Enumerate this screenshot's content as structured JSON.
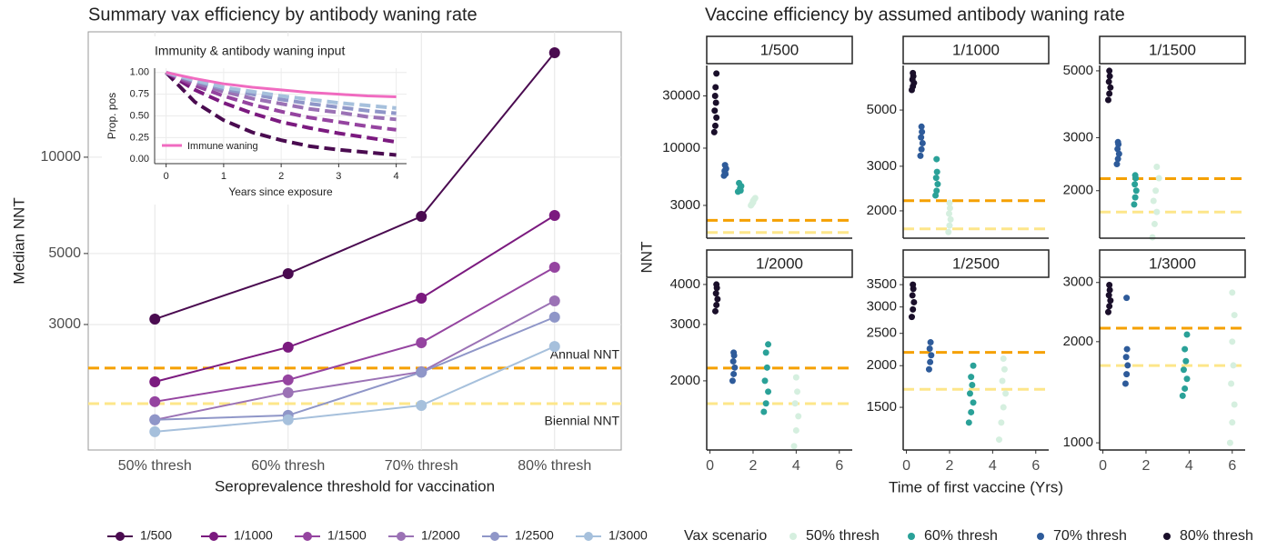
{
  "chart_data": [
    {
      "type": "line",
      "title": "Summary vax efficiency by antibody waning rate",
      "xlabel": "Seroprevalence threshold for vaccination",
      "ylabel": "Median NNT",
      "categories": [
        "50% thresh",
        "60% thresh",
        "70% thresh",
        "80% thresh"
      ],
      "series": [
        {
          "name": "1/500",
          "color": "#4a0b50",
          "values": [
            3119,
            4325,
            6530,
            21200
          ]
        },
        {
          "name": "1/1000",
          "color": "#7b1a7f",
          "values": [
            1986,
            2548,
            3626,
            6577
          ]
        },
        {
          "name": "1/1500",
          "color": "#9544a0",
          "values": [
            1722,
            2014,
            2631,
            4529
          ]
        },
        {
          "name": "1/2000",
          "color": "#9b72b5",
          "values": [
            1511,
            1837,
            2135,
            3556
          ]
        },
        {
          "name": "1/2500",
          "color": "#8f96c8",
          "values": [
            1511,
            1560,
            2128,
            3163
          ]
        },
        {
          "name": "1/3000",
          "color": "#a6c0dc",
          "values": [
            1387,
            1511,
            1676,
            2562
          ]
        }
      ],
      "ylim": [
        1216,
        24650
      ],
      "yticks": [
        3000,
        5000,
        10000
      ],
      "log_y": true,
      "grid": true,
      "legend": "bottom",
      "hlines": [
        {
          "label": "Annual NNT",
          "value": 2193,
          "color": "#f5a000"
        },
        {
          "label": "Biennial NNT",
          "value": 1698,
          "color": "#fde68a"
        }
      ]
    },
    {
      "type": "line",
      "title": "Immunity & antibody waning input",
      "xlabel": "Years since exposure",
      "ylabel": "Prop. pos",
      "x": [
        0,
        0.5,
        1,
        1.5,
        2,
        2.5,
        3,
        3.5,
        4
      ],
      "xlim": [
        -0.2,
        4.18
      ],
      "xticks": [
        0,
        1,
        2,
        3,
        4
      ],
      "ylim": [
        -0.05,
        1.05
      ],
      "yticks": [
        {
          "value": 0,
          "label": "0.00"
        },
        {
          "value": 0.25,
          "label": "0.25"
        },
        {
          "value": 0.5,
          "label": "0.50"
        },
        {
          "value": 0.75,
          "label": "0.75"
        },
        {
          "value": 1,
          "label": "1.00"
        }
      ],
      "series": [
        {
          "name": "Immune waning",
          "color": "#f06bc0",
          "values": [
            1,
            0.93,
            0.87,
            0.83,
            0.8,
            0.77,
            0.75,
            0.73,
            0.72
          ]
        },
        {
          "color": "#4a0b50",
          "dash": true,
          "values": [
            1,
            0.66,
            0.45,
            0.31,
            0.22,
            0.15,
            0.11,
            0.08,
            0.05
          ]
        },
        {
          "color": "#7b1a7f",
          "dash": true,
          "values": [
            1,
            0.8,
            0.65,
            0.53,
            0.43,
            0.36,
            0.3,
            0.25,
            0.2
          ]
        },
        {
          "color": "#9544a0",
          "dash": true,
          "values": [
            1,
            0.85,
            0.73,
            0.63,
            0.55,
            0.48,
            0.43,
            0.38,
            0.34
          ]
        },
        {
          "color": "#9b72b5",
          "dash": true,
          "values": [
            1,
            0.88,
            0.78,
            0.7,
            0.64,
            0.58,
            0.54,
            0.49,
            0.46
          ]
        },
        {
          "color": "#8f96c8",
          "dash": true,
          "values": [
            1,
            0.9,
            0.81,
            0.75,
            0.69,
            0.64,
            0.6,
            0.56,
            0.53
          ]
        },
        {
          "color": "#a6c0dc",
          "dash": true,
          "values": [
            1,
            0.91,
            0.83,
            0.78,
            0.73,
            0.69,
            0.65,
            0.62,
            0.59
          ]
        }
      ]
    },
    {
      "type": "facet_scatter",
      "title": "Vaccine efficiency by assumed antibody waning rate",
      "xlabel": "Time of first vaccine (Yrs)",
      "ylabel": "NNT",
      "legend_title": "Vax scenario",
      "log_y": true,
      "series": [
        {
          "name": "50% thresh",
          "color": "#d5efdf"
        },
        {
          "name": "60% thresh",
          "color": "#2aa198"
        },
        {
          "name": "70% thresh",
          "color": "#2e5b9a"
        },
        {
          "name": "80% thresh",
          "color": "#1a0f2a"
        }
      ],
      "xlim": [
        -0.15,
        6.6
      ],
      "xticks": [
        0,
        2,
        4,
        6
      ],
      "hlines": [
        {
          "value": 2193,
          "color": "#f5a000"
        },
        {
          "value": 1698,
          "color": "#fde68a"
        }
      ],
      "facets": [
        {
          "title": "1/500",
          "ylim": [
            1506,
            56900
          ],
          "yticks": [
            3000,
            10000,
            30000
          ],
          "points": [
            {
              "x": [
                1.9,
                2.0,
                2.05,
                1.95,
                2.1,
                2.0
              ],
              "values": [
                3000,
                3200,
                3400,
                3100,
                3500,
                3300
              ]
            },
            {
              "x": [
                1.3,
                1.4,
                1.45,
                1.35,
                1.4,
                1.42
              ],
              "values": [
                4000,
                4200,
                4500,
                4800,
                4300,
                4100
              ]
            },
            {
              "x": [
                0.65,
                0.7,
                0.75,
                0.7,
                0.68,
                0.72
              ],
              "values": [
                5600,
                6000,
                6500,
                7000,
                6200,
                5800
              ]
            },
            {
              "x": [
                0.2,
                0.25,
                0.3,
                0.22,
                0.28,
                0.24,
                0.26,
                0.3
              ],
              "values": [
                14000,
                16000,
                19000,
                22000,
                26000,
                30000,
                36000,
                48000
              ]
            }
          ]
        },
        {
          "title": "1/1000",
          "ylim": [
            1560,
            7500
          ],
          "yticks": [
            2000,
            3000,
            5000
          ],
          "points": [
            {
              "x": [
                1.95,
                2.0,
                2.05,
                1.98,
                2.02,
                2.0
              ],
              "values": [
                1650,
                1750,
                1850,
                1950,
                2050,
                2150
              ]
            },
            {
              "x": [
                1.35,
                1.4,
                1.45,
                1.38,
                1.42,
                1.4
              ],
              "values": [
                2300,
                2400,
                2550,
                2700,
                2850,
                3200
              ]
            },
            {
              "x": [
                0.65,
                0.7,
                0.75,
                0.68,
                0.72,
                0.7
              ],
              "values": [
                3300,
                3500,
                3700,
                3900,
                4100,
                4300
              ]
            },
            {
              "x": [
                0.25,
                0.3,
                0.35,
                0.28,
                0.32,
                0.3
              ],
              "values": [
                6000,
                6200,
                6400,
                6600,
                6800,
                7000
              ]
            }
          ]
        },
        {
          "title": "1/1500",
          "ylim": [
            1391,
            5210
          ],
          "yticks": [
            2000,
            3000,
            5000
          ],
          "points": [
            {
              "x": [
                2.3,
                2.4,
                2.5,
                2.35,
                2.45,
                2.6,
                2.5
              ],
              "values": [
                1400,
                1550,
                1700,
                1850,
                2000,
                2200,
                2400
              ]
            },
            {
              "x": [
                1.45,
                1.5,
                1.55,
                1.48,
                1.52,
                1.5
              ],
              "values": [
                1800,
                1900,
                2000,
                2100,
                2200,
                2250
              ]
            },
            {
              "x": [
                0.65,
                0.7,
                0.75,
                0.68,
                0.72,
                0.7
              ],
              "values": [
                2450,
                2550,
                2650,
                2750,
                2850,
                2900
              ]
            },
            {
              "x": [
                0.25,
                0.3,
                0.35,
                0.28,
                0.32,
                0.3
              ],
              "values": [
                4000,
                4200,
                4400,
                4600,
                4800,
                5000
              ]
            }
          ]
        },
        {
          "title": "1/2000",
          "ylim": [
            1216,
            4185
          ],
          "yticks": [
            2000,
            3000,
            4000
          ],
          "points": [
            {
              "x": [
                3.9,
                4.0,
                4.1,
                3.95,
                4.05,
                4.0
              ],
              "values": [
                1250,
                1400,
                1550,
                1700,
                1850,
                2050
              ]
            },
            {
              "x": [
                2.5,
                2.6,
                2.7,
                2.55,
                2.65,
                2.6,
                2.7
              ],
              "values": [
                1600,
                1700,
                1850,
                2000,
                2200,
                2450,
                2600
              ]
            },
            {
              "x": [
                1.05,
                1.1,
                1.15,
                1.08,
                1.12,
                1.1
              ],
              "values": [
                2000,
                2100,
                2200,
                2300,
                2400,
                2450
              ]
            },
            {
              "x": [
                0.25,
                0.3,
                0.35,
                0.28,
                0.32,
                0.3
              ],
              "values": [
                3300,
                3450,
                3600,
                3750,
                3900,
                4000
              ]
            }
          ]
        },
        {
          "title": "1/2500",
          "ylim": [
            1117,
            3660
          ],
          "yticks": [
            1500,
            2000,
            2500,
            3000,
            3500
          ],
          "points": [
            {
              "x": [
                4.3,
                4.4,
                4.5,
                4.6,
                4.45,
                4.55,
                4.5
              ],
              "values": [
                1200,
                1350,
                1500,
                1650,
                1800,
                1950,
                2100
              ]
            },
            {
              "x": [
                2.9,
                3.0,
                3.1,
                2.95,
                3.05,
                3.0,
                3.1
              ],
              "values": [
                1350,
                1450,
                1550,
                1650,
                1750,
                1850,
                2000
              ]
            },
            {
              "x": [
                1.05,
                1.1,
                1.15,
                1.08,
                1.12
              ],
              "values": [
                1950,
                2050,
                2150,
                2250,
                2350
              ]
            },
            {
              "x": [
                0.25,
                0.3,
                0.35,
                0.28,
                0.32,
                0.3
              ],
              "values": [
                2800,
                2950,
                3100,
                3250,
                3400,
                3500
              ]
            }
          ]
        },
        {
          "title": "1/3000",
          "ylim": [
            952,
            3090
          ],
          "yticks": [
            1000,
            2000,
            3000
          ],
          "points": [
            {
              "x": [
                5.9,
                6.0,
                6.1,
                5.95,
                6.05,
                6.0,
                6.1,
                6.0
              ],
              "values": [
                1000,
                1150,
                1300,
                1500,
                1700,
                2000,
                2400,
                2800
              ]
            },
            {
              "x": [
                3.7,
                3.8,
                3.9,
                3.75,
                3.85,
                3.8,
                3.9
              ],
              "values": [
                1380,
                1450,
                1550,
                1650,
                1750,
                1900,
                2100
              ]
            },
            {
              "x": [
                1.05,
                1.1,
                1.15,
                1.08,
                1.12,
                1.1
              ],
              "values": [
                1500,
                1600,
                1700,
                1800,
                1900,
                2700
              ]
            },
            {
              "x": [
                0.25,
                0.3,
                0.35,
                0.28,
                0.32,
                0.3
              ],
              "values": [
                2450,
                2550,
                2650,
                2750,
                2850,
                2950
              ]
            }
          ]
        }
      ]
    }
  ]
}
